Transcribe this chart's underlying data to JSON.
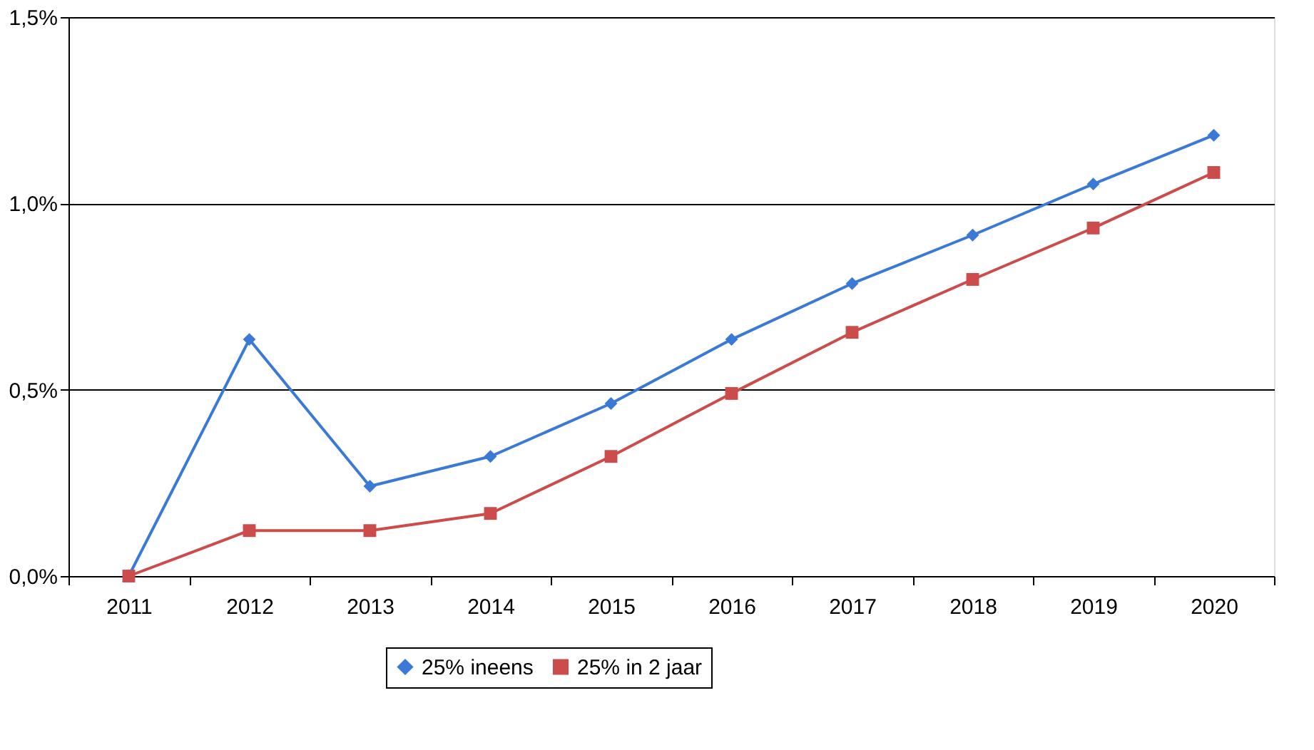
{
  "chart_data": {
    "type": "line",
    "categories": [
      "2011",
      "2012",
      "2013",
      "2014",
      "2015",
      "2016",
      "2017",
      "2018",
      "2019",
      "2020"
    ],
    "series": [
      {
        "name": "25% ineens",
        "color": "#3a7ad6",
        "marker": "diamond",
        "values": [
          0,
          0.635,
          0.241,
          0.321,
          0.463,
          0.635,
          0.785,
          0.915,
          1.052,
          1.183
        ]
      },
      {
        "name": "25% in 2 jaar",
        "color": "#cc4b4b",
        "marker": "square",
        "values": [
          0,
          0.122,
          0.122,
          0.168,
          0.321,
          0.49,
          0.654,
          0.796,
          0.934,
          1.083
        ]
      }
    ],
    "ylim": [
      0,
      1.5
    ],
    "yticks": [
      {
        "value": 0,
        "label": "0,0%"
      },
      {
        "value": 0.5,
        "label": "0,5%"
      },
      {
        "value": 1,
        "label": "1,0%"
      },
      {
        "value": 1.5,
        "label": "1,5%"
      }
    ],
    "grid": "y",
    "legend": "bottom",
    "line_style": "solid"
  }
}
